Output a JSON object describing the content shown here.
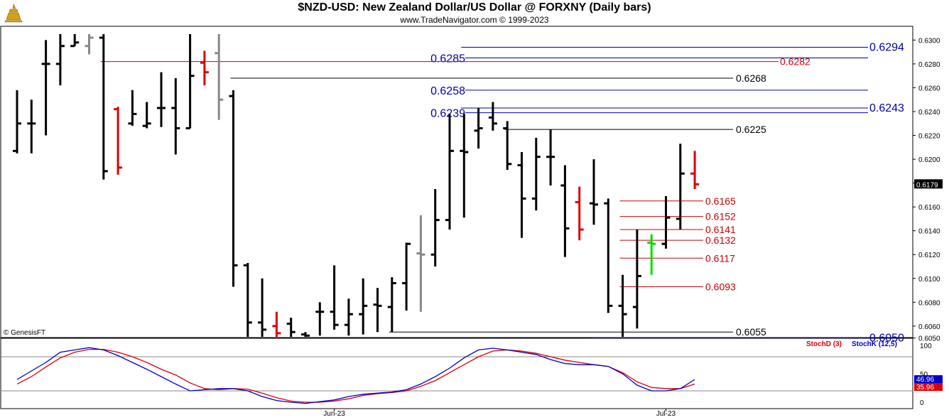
{
  "header": {
    "title": "$NZD-USD:  New Zealand Dollar/US Dollar @ FORXNY  (Daily bars)",
    "subtitle": "www.TradeNavigator.com © 1999-2023",
    "copyright": "© GenesisFT"
  },
  "colors": {
    "up": "#000000",
    "down": "#dd0000",
    "neutral": "#888888",
    "green": "#00dd00",
    "blue_level": "#0000aa",
    "red_level": "#cc0000",
    "black_level": "#000000",
    "stoch_d": "#dd0000",
    "stoch_k": "#0000cc"
  },
  "chart_data": {
    "type": "ohlc",
    "price_axis": {
      "min": 0.605,
      "max": 0.6305,
      "ticks": [
        "0.6050",
        "0.6060",
        "0.6080",
        "0.6100",
        "0.6120",
        "0.6140",
        "0.6160",
        "0.6180",
        "0.6200",
        "0.6220",
        "0.6240",
        "0.6260",
        "0.6280",
        "0.6300"
      ],
      "last_price": "0.6179"
    },
    "x_axis": {
      "labels": [
        {
          "label": "Jun-23",
          "bar": 22
        },
        {
          "label": "Jul-23",
          "bar": 45
        }
      ]
    },
    "bars": [
      {
        "o": 0.6207,
        "h": 0.6258,
        "l": 0.6205,
        "c": 0.623,
        "col": "up"
      },
      {
        "o": 0.623,
        "h": 0.625,
        "l": 0.6205,
        "c": 0.623,
        "col": "up"
      },
      {
        "o": 0.628,
        "h": 0.63,
        "l": 0.622,
        "c": 0.628,
        "col": "up"
      },
      {
        "o": 0.628,
        "h": 0.6305,
        "l": 0.6262,
        "c": 0.6295,
        "col": "up"
      },
      {
        "o": 0.6295,
        "h": 0.6305,
        "l": 0.6295,
        "c": 0.6298,
        "col": "up"
      },
      {
        "o": 0.6295,
        "h": 0.6305,
        "l": 0.6288,
        "c": 0.6302,
        "col": "neutral"
      },
      {
        "o": 0.6302,
        "h": 0.6305,
        "l": 0.6183,
        "c": 0.619,
        "col": "up"
      },
      {
        "o": 0.6242,
        "h": 0.6244,
        "l": 0.6187,
        "c": 0.6193,
        "col": "down"
      },
      {
        "o": 0.623,
        "h": 0.6258,
        "l": 0.6228,
        "c": 0.6238,
        "col": "up"
      },
      {
        "o": 0.6228,
        "h": 0.6248,
        "l": 0.6226,
        "c": 0.623,
        "col": "up"
      },
      {
        "o": 0.6243,
        "h": 0.6273,
        "l": 0.6227,
        "c": 0.6243,
        "col": "up"
      },
      {
        "o": 0.6243,
        "h": 0.6268,
        "l": 0.6204,
        "c": 0.6226,
        "col": "up"
      },
      {
        "o": 0.6226,
        "h": 0.6305,
        "l": 0.6226,
        "c": 0.627,
        "col": "up"
      },
      {
        "o": 0.6281,
        "h": 0.6291,
        "l": 0.6262,
        "c": 0.6273,
        "col": "down"
      },
      {
        "o": 0.6289,
        "h": 0.6305,
        "l": 0.6233,
        "c": 0.625,
        "col": "neutral"
      },
      {
        "o": 0.6253,
        "h": 0.6258,
        "l": 0.6093,
        "c": 0.6111,
        "col": "up"
      },
      {
        "o": 0.6111,
        "h": 0.6113,
        "l": 0.605,
        "c": 0.6063,
        "col": "up"
      },
      {
        "o": 0.6063,
        "h": 0.61,
        "l": 0.605,
        "c": 0.6057,
        "col": "up"
      },
      {
        "o": 0.606,
        "h": 0.6072,
        "l": 0.605,
        "c": 0.6054,
        "col": "down"
      },
      {
        "o": 0.6062,
        "h": 0.6067,
        "l": 0.605,
        "c": 0.6055,
        "col": "up"
      },
      {
        "o": 0.6053,
        "h": 0.6055,
        "l": 0.605,
        "c": 0.6052,
        "col": "up"
      },
      {
        "o": 0.6072,
        "h": 0.608,
        "l": 0.6052,
        "c": 0.6072,
        "col": "up"
      },
      {
        "o": 0.6072,
        "h": 0.6111,
        "l": 0.6057,
        "c": 0.6061,
        "col": "up"
      },
      {
        "o": 0.6061,
        "h": 0.6083,
        "l": 0.6052,
        "c": 0.607,
        "col": "up"
      },
      {
        "o": 0.607,
        "h": 0.61,
        "l": 0.6053,
        "c": 0.6077,
        "col": "up"
      },
      {
        "o": 0.6078,
        "h": 0.6092,
        "l": 0.6055,
        "c": 0.6077,
        "col": "up"
      },
      {
        "o": 0.6076,
        "h": 0.6101,
        "l": 0.6055,
        "c": 0.6096,
        "col": "up"
      },
      {
        "o": 0.6096,
        "h": 0.613,
        "l": 0.6073,
        "c": 0.6129,
        "col": "up"
      },
      {
        "o": 0.6121,
        "h": 0.6153,
        "l": 0.6072,
        "c": 0.612,
        "col": "neutral"
      },
      {
        "o": 0.612,
        "h": 0.6175,
        "l": 0.611,
        "c": 0.6149,
        "col": "up"
      },
      {
        "o": 0.6149,
        "h": 0.6238,
        "l": 0.6141,
        "c": 0.6207,
        "col": "up"
      },
      {
        "o": 0.6207,
        "h": 0.6238,
        "l": 0.6151,
        "c": 0.6206,
        "col": "up"
      },
      {
        "o": 0.6224,
        "h": 0.6243,
        "l": 0.6209,
        "c": 0.6226,
        "col": "up"
      },
      {
        "o": 0.6235,
        "h": 0.6248,
        "l": 0.6224,
        "c": 0.623,
        "col": "up"
      },
      {
        "o": 0.6226,
        "h": 0.6232,
        "l": 0.6191,
        "c": 0.6196,
        "col": "up"
      },
      {
        "o": 0.6195,
        "h": 0.6206,
        "l": 0.6134,
        "c": 0.6167,
        "col": "up"
      },
      {
        "o": 0.6167,
        "h": 0.6218,
        "l": 0.6157,
        "c": 0.6202,
        "col": "up"
      },
      {
        "o": 0.6202,
        "h": 0.6225,
        "l": 0.6178,
        "c": 0.6202,
        "col": "up"
      },
      {
        "o": 0.6178,
        "h": 0.6195,
        "l": 0.6118,
        "c": 0.6142,
        "col": "up"
      },
      {
        "o": 0.6164,
        "h": 0.6177,
        "l": 0.6132,
        "c": 0.6141,
        "col": "down"
      },
      {
        "o": 0.6163,
        "h": 0.62,
        "l": 0.6145,
        "c": 0.6162,
        "col": "up"
      },
      {
        "o": 0.6163,
        "h": 0.6167,
        "l": 0.6071,
        "c": 0.6077,
        "col": "up"
      },
      {
        "o": 0.6077,
        "h": 0.6103,
        "l": 0.605,
        "c": 0.607,
        "col": "up"
      },
      {
        "o": 0.6076,
        "h": 0.6141,
        "l": 0.6058,
        "c": 0.6102,
        "col": "up"
      },
      {
        "o": 0.613,
        "h": 0.6137,
        "l": 0.6103,
        "c": 0.6129,
        "col": "green"
      },
      {
        "o": 0.6129,
        "h": 0.6169,
        "l": 0.6125,
        "c": 0.6151,
        "col": "up"
      },
      {
        "o": 0.615,
        "h": 0.6213,
        "l": 0.6141,
        "c": 0.6188,
        "col": "up"
      },
      {
        "o": 0.6188,
        "h": 0.6207,
        "l": 0.6175,
        "c": 0.6179,
        "col": "down"
      }
    ],
    "levels": [
      {
        "value": 0.6294,
        "label": "0.6294",
        "color": "blue",
        "x1": 0.6294,
        "from_bar": 31,
        "to_end": true,
        "big": true
      },
      {
        "value": 0.6285,
        "label": "0.6285",
        "color": "blue",
        "from_bar": 31,
        "to_bar_label": "left",
        "big": true
      },
      {
        "value": 0.6282,
        "label": "0.6282",
        "color": "red",
        "from_bar": 6,
        "to_end": false,
        "big": false
      },
      {
        "value": 0.6268,
        "label": "0.6268",
        "color": "black",
        "from_bar": 15,
        "big": false
      },
      {
        "value": 0.6258,
        "label": "0.6258",
        "color": "blue",
        "from_bar": 31,
        "big": true
      },
      {
        "value": 0.6243,
        "label": "0.6243",
        "color": "blue",
        "from_bar": 31,
        "big": true
      },
      {
        "value": 0.6239,
        "label": "0.6239",
        "color": "blue",
        "from_bar": 31,
        "big": true
      },
      {
        "value": 0.6225,
        "label": "0.6225",
        "color": "black",
        "from_bar": 34,
        "big": false
      },
      {
        "value": 0.6165,
        "label": "0.6165",
        "color": "red",
        "from_bar": 42,
        "big": false
      },
      {
        "value": 0.6152,
        "label": "0.6152",
        "color": "red",
        "from_bar": 42,
        "big": false
      },
      {
        "value": 0.6141,
        "label": "0.6141",
        "color": "red",
        "from_bar": 42,
        "big": false
      },
      {
        "value": 0.6132,
        "label": "0.6132",
        "color": "red",
        "from_bar": 42,
        "big": false
      },
      {
        "value": 0.6117,
        "label": "0.6117",
        "color": "red",
        "from_bar": 42,
        "big": false
      },
      {
        "value": 0.6093,
        "label": "0.6093",
        "color": "red",
        "from_bar": 42,
        "big": false
      },
      {
        "value": 0.6055,
        "label": "0.6055",
        "color": "black",
        "from_bar": 26,
        "big": false
      },
      {
        "value": 0.605,
        "label": "0.6050",
        "color": "blue",
        "from_bar": 40,
        "big": true
      }
    ],
    "stochastic": {
      "legend_d": "StochD (3)",
      "legend_k": "StochK (12,5)",
      "axis_labels": [
        "100",
        "50",
        "0"
      ],
      "bands": [
        80,
        20
      ],
      "last_k": "46.96",
      "last_d": "35.96",
      "k": [
        40,
        55,
        70,
        88,
        92,
        96,
        92,
        82,
        70,
        58,
        45,
        32,
        20,
        22,
        24,
        24,
        20,
        10,
        3,
        0,
        -2,
        1,
        4,
        10,
        14,
        16,
        18,
        22,
        32,
        45,
        60,
        78,
        92,
        95,
        92,
        88,
        84,
        75,
        68,
        66,
        66,
        63,
        50,
        30,
        20,
        20,
        24,
        40
      ],
      "d": [
        32,
        45,
        62,
        78,
        88,
        93,
        93,
        88,
        80,
        70,
        58,
        48,
        34,
        24,
        22,
        24,
        23,
        16,
        8,
        2,
        0,
        0,
        2,
        6,
        12,
        15,
        17,
        20,
        28,
        38,
        52,
        66,
        80,
        90,
        92,
        90,
        86,
        80,
        74,
        70,
        66,
        63,
        52,
        36,
        26,
        24,
        24,
        32
      ]
    }
  }
}
